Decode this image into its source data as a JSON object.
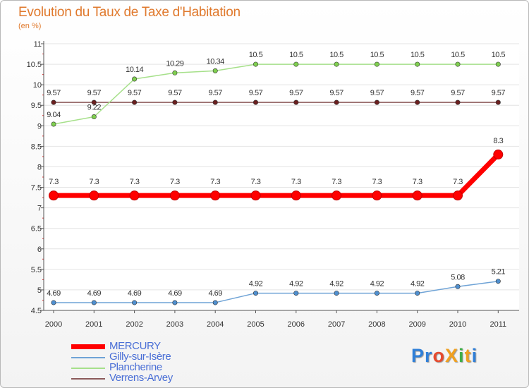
{
  "title": "Evolution du Taux de Taxe d'Habitation",
  "subtitle": "(en %)",
  "brand": "ProXiti",
  "chart_data": {
    "type": "line",
    "title": "Evolution du Taux de Taxe d'Habitation",
    "ylabel": "(en %)",
    "categories": [
      "2000",
      "2001",
      "2002",
      "2003",
      "2004",
      "2005",
      "2006",
      "2007",
      "2008",
      "2009",
      "2010",
      "2011"
    ],
    "ylim": [
      4.5,
      11
    ],
    "yticks": [
      {
        "value": 4.5,
        "label": "4.5"
      },
      {
        "value": 5,
        "label": "5"
      },
      {
        "value": 5.5,
        "label": "5.5"
      },
      {
        "value": 6,
        "label": "6"
      },
      {
        "value": 6.5,
        "label": "6.5"
      },
      {
        "value": 7,
        "label": "7"
      },
      {
        "value": 7.5,
        "label": "7.5"
      },
      {
        "value": 8,
        "label": "8"
      },
      {
        "value": 8.5,
        "label": "8.5"
      },
      {
        "value": 9,
        "label": "9"
      },
      {
        "value": 9.5,
        "label": "9.5"
      },
      {
        "value": 10,
        "label": "10"
      },
      {
        "value": 10.5,
        "label": "10.5"
      },
      {
        "value": 11,
        "label": "11"
      }
    ],
    "grid": "horizontal",
    "legend_position": "bottom-left",
    "series": [
      {
        "name": "MERCURY",
        "color": "#ff0000",
        "marker": "#ff0000",
        "emphasis": true,
        "values": [
          7.3,
          7.3,
          7.3,
          7.3,
          7.3,
          7.3,
          7.3,
          7.3,
          7.3,
          7.3,
          7.3,
          8.3
        ],
        "labels": [
          "7.3",
          "7.3",
          "7.3",
          "7.3",
          "7.3",
          "7.3",
          "7.3",
          "7.3",
          "7.3",
          "7.3",
          "7.3",
          "8.3"
        ]
      },
      {
        "name": "Gilly-sur-Isère",
        "color": "#6fa3d6",
        "marker": "#4f8fcf",
        "values": [
          4.69,
          4.69,
          4.69,
          4.69,
          4.69,
          4.92,
          4.92,
          4.92,
          4.92,
          4.92,
          5.08,
          5.21
        ],
        "labels": [
          "4.69",
          "4.69",
          "4.69",
          "4.69",
          "4.69",
          "4.92",
          "4.92",
          "4.92",
          "4.92",
          "4.92",
          "5.08",
          "5.21"
        ]
      },
      {
        "name": "Plancherine",
        "color": "#a6e08a",
        "marker": "#7fcf4f",
        "values": [
          9.04,
          9.22,
          10.14,
          10.29,
          10.34,
          10.5,
          10.5,
          10.5,
          10.5,
          10.5,
          10.5,
          10.5
        ],
        "labels": [
          "9.04",
          "9.22",
          "10.14",
          "10.29",
          "10.34",
          "10.5",
          "10.5",
          "10.5",
          "10.5",
          "10.5",
          "10.5",
          "10.5"
        ]
      },
      {
        "name": "Verrens-Arvey",
        "color": "#8b5a5a",
        "marker": "#6b1f1f",
        "values": [
          9.57,
          9.57,
          9.57,
          9.57,
          9.57,
          9.57,
          9.57,
          9.57,
          9.57,
          9.57,
          9.57,
          9.57
        ],
        "labels": [
          "9.57",
          "9.57",
          "9.57",
          "9.57",
          "9.57",
          "9.57",
          "9.57",
          "9.57",
          "9.57",
          "9.57",
          "9.57",
          "9.57"
        ]
      }
    ]
  }
}
